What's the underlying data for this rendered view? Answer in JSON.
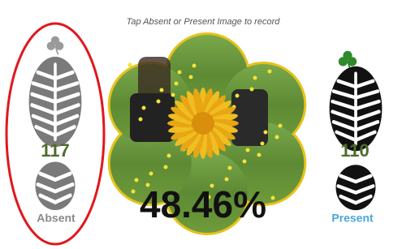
{
  "header": {
    "instruction": "Tap Absent or Present Image to record"
  },
  "absent": {
    "count": 117,
    "label": "Absent"
  },
  "present": {
    "count": 110,
    "label": "Present"
  },
  "result": {
    "percentage": "48.46%"
  }
}
